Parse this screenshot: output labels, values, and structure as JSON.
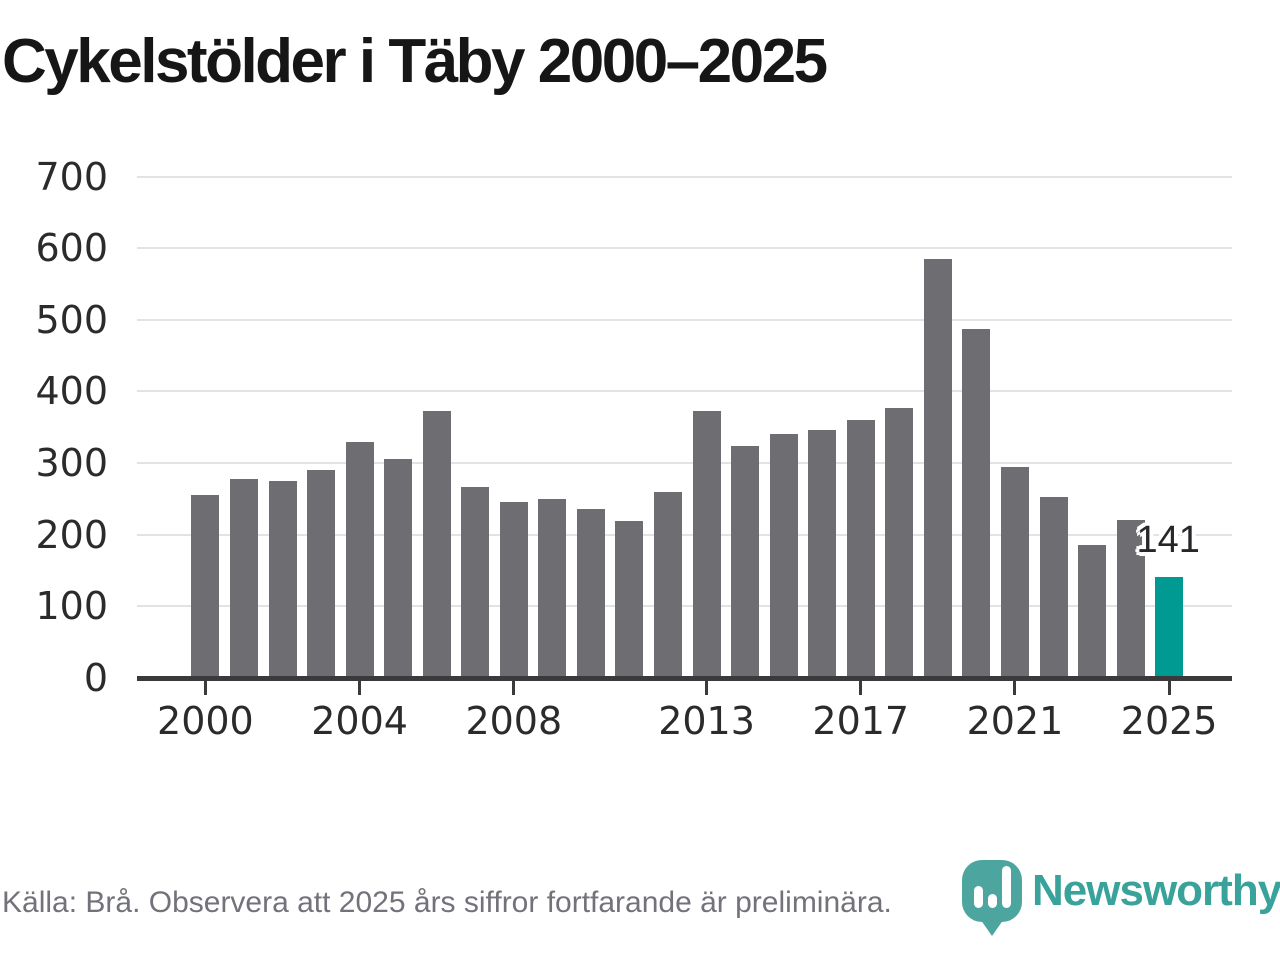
{
  "title": "Cykelstölder i Täby 2000–2025",
  "footer": {
    "source_note": "Källa: Brå. Observera att 2025 års siffror fortfarande är preliminära.",
    "brand": "Newsworthy"
  },
  "colors": {
    "bar": "#6D6D72",
    "highlight": "#009A93",
    "grid": "#E3E3E3",
    "axis": "#3A3A3C",
    "tick_label": "#2B2B2B",
    "title": "#161616",
    "note": "#72727A",
    "logo_pin": "#4CA69F",
    "logo_text": "#39A39B"
  },
  "chart_data": {
    "type": "bar",
    "title": "Cykelstölder i Täby 2000–2025",
    "x": [
      2000,
      2001,
      2002,
      2003,
      2004,
      2005,
      2006,
      2007,
      2008,
      2009,
      2010,
      2011,
      2012,
      2013,
      2014,
      2015,
      2016,
      2017,
      2018,
      2019,
      2020,
      2021,
      2022,
      2023,
      2024,
      2025
    ],
    "values": [
      256,
      278,
      275,
      291,
      330,
      306,
      373,
      267,
      246,
      250,
      236,
      219,
      260,
      372,
      324,
      340,
      346,
      360,
      377,
      585,
      487,
      294,
      252,
      186,
      221,
      141
    ],
    "highlight_year": 2025,
    "annotation": {
      "year": 2025,
      "label": "141"
    },
    "ylim": [
      0,
      700
    ],
    "ytick_step": 100,
    "yticks": [
      0,
      100,
      200,
      300,
      400,
      500,
      600,
      700
    ],
    "xticks": [
      2000,
      2004,
      2008,
      2013,
      2017,
      2021,
      2025
    ],
    "grid": "horizontal",
    "legend": "none"
  }
}
